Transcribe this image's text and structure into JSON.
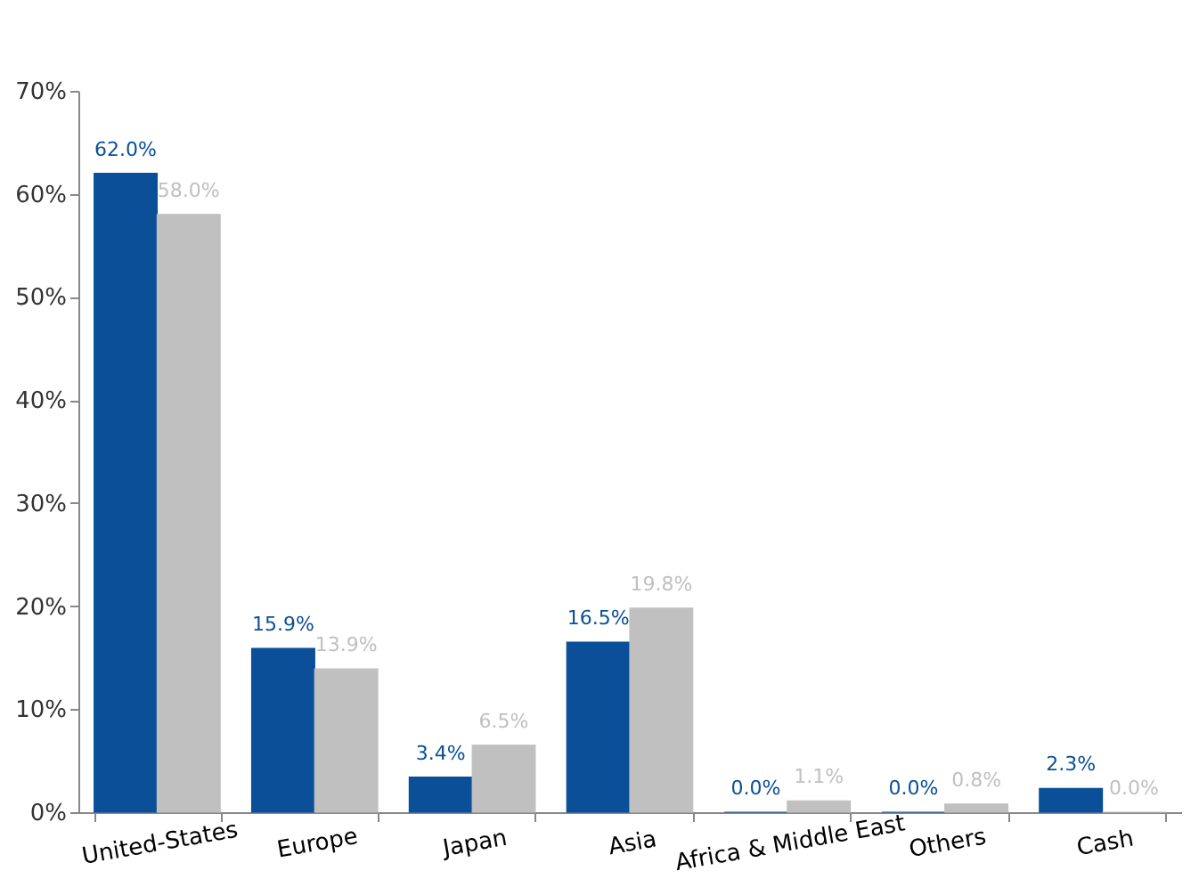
{
  "chart_data": {
    "type": "bar",
    "categories": [
      "United-States",
      "Europe",
      "Japan",
      "Asia",
      "Africa & Middle East",
      "Others",
      "Cash"
    ],
    "series": [
      {
        "color": "#0a4f97",
        "values": [
          62.0,
          15.9,
          3.4,
          16.5,
          0.0,
          0.0,
          2.3
        ],
        "value_labels": [
          "62.0%",
          "15.9%",
          "3.4%",
          "16.5%",
          "0.0%",
          "0.0%",
          "2.3%"
        ]
      },
      {
        "color": "#c0c0c0",
        "values": [
          58.0,
          13.9,
          6.5,
          19.8,
          1.1,
          0.8,
          0.0
        ],
        "value_labels": [
          "58.0%",
          "13.9%",
          "6.5%",
          "19.8%",
          "1.1%",
          "0.8%",
          "0.0%"
        ]
      }
    ],
    "ylim": [
      0,
      70
    ],
    "yticks": [
      {
        "value": 0,
        "label": "0%"
      },
      {
        "value": 10,
        "label": "10%"
      },
      {
        "value": 20,
        "label": "20%"
      },
      {
        "value": 30,
        "label": "30%"
      },
      {
        "value": 40,
        "label": "40%"
      },
      {
        "value": 50,
        "label": "50%"
      },
      {
        "value": 60,
        "label": "60%"
      },
      {
        "value": 70,
        "label": "70%"
      }
    ]
  }
}
